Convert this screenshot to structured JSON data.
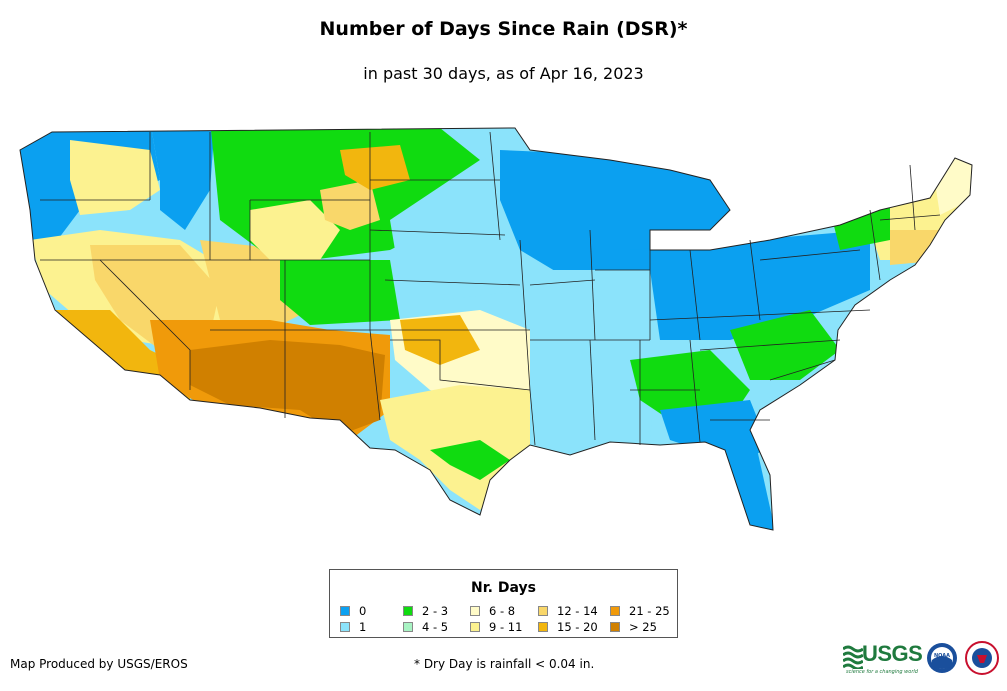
{
  "title": "Number of Days Since Rain (DSR)*",
  "subtitle": "in past 30 days, as of Apr 16, 2023",
  "legend": {
    "title": "Nr. Days",
    "items": [
      {
        "label": "0",
        "color": "#0ba0f0"
      },
      {
        "label": "1",
        "color": "#8be3fb"
      },
      {
        "label": "2 - 3",
        "color": "#10db10"
      },
      {
        "label": "4 - 5",
        "color": "#a8f3c3"
      },
      {
        "label": "6 - 8",
        "color": "#fffbc8"
      },
      {
        "label": "9 - 11",
        "color": "#fcf290"
      },
      {
        "label": "12 - 14",
        "color": "#f9d76a"
      },
      {
        "label": "15 - 20",
        "color": "#f2b60e"
      },
      {
        "label": "21 - 25",
        "color": "#f09a0a"
      },
      {
        "label": "> 25",
        "color": "#d08000"
      }
    ]
  },
  "footer": {
    "credit": "Map Produced by USGS/EROS",
    "note": "* Dry Day is rainfall < 0.04 in."
  },
  "logos": {
    "usgs": "USGS",
    "usgs_tagline": "science for a changing world",
    "noaa": "NOAA"
  }
}
